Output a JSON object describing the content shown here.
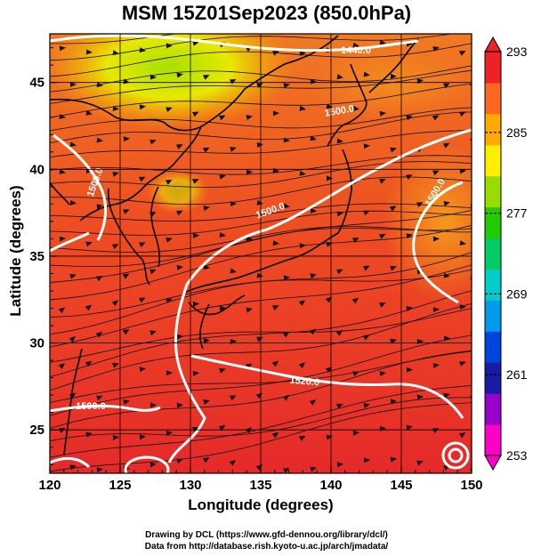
{
  "title": "MSM 15Z01Sep2023 (850.0hPa)",
  "x_axis": {
    "label": "Longitude (degrees)",
    "ticks": [
      120,
      125,
      130,
      135,
      140,
      145,
      150
    ],
    "range": [
      120,
      150
    ]
  },
  "y_axis": {
    "label": "Latitude  (degrees)",
    "ticks": [
      25,
      30,
      35,
      40,
      45
    ],
    "range": [
      22.5,
      47.8
    ]
  },
  "colorbar": {
    "ticks": [
      293,
      285,
      277,
      269,
      261,
      253
    ],
    "range": [
      253,
      293
    ],
    "colors": [
      "#ff00c8",
      "#9900cc",
      "#1a1aa6",
      "#0044dd",
      "#0099ee",
      "#00cccc",
      "#00cc66",
      "#22cc00",
      "#99dd00",
      "#ffee00",
      "#ffaa00",
      "#ff6622",
      "#ee2222"
    ]
  },
  "contour_labels": [
    {
      "text": "1440.0"
    },
    {
      "text": "1500.0"
    },
    {
      "text": "1500.0"
    },
    {
      "text": "1500.0"
    },
    {
      "text": "1500.0"
    },
    {
      "text": "1520.0"
    },
    {
      "text": "1500.0"
    }
  ],
  "credits": {
    "line1": "Drawing by DCL (https://www.gfd-dennou.org/library/dcl/)",
    "line2": "Data from http://database.rish.kyoto-u.ac.jp/arch/jmadata/"
  }
}
